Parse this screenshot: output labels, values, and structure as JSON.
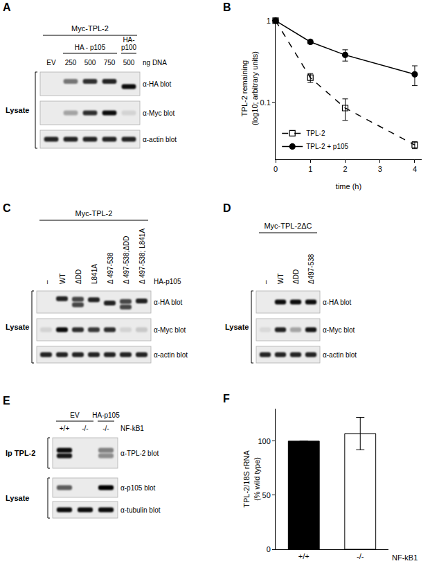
{
  "chart_data": [
    {
      "panel": "B",
      "type": "line",
      "x_label": "time (h)",
      "y_label": "TPL-2 remaining\n(log10; arbitrary units)",
      "log": "y",
      "xlim": [
        0,
        4.2
      ],
      "xticks": [
        0,
        1,
        2,
        3,
        4
      ],
      "ylim": [
        0.02,
        1.1
      ],
      "yticks": [
        0.1,
        1
      ],
      "grid": false,
      "legend": "lower left",
      "x": [
        0,
        1,
        2,
        4
      ],
      "series": [
        {
          "name": "TPL-2",
          "color": "#000000",
          "marker": "square-open",
          "line_style": "dash",
          "values": [
            1,
            0.2,
            0.085,
            0.03
          ],
          "errors": [
            0,
            0.025,
            0.025,
            0.003
          ]
        },
        {
          "name": "TPL-2 + p105",
          "color": "#000000",
          "marker": "circle",
          "line_style": "solid",
          "values": [
            1,
            0.55,
            0.38,
            0.22
          ],
          "errors": [
            0,
            0.03,
            0.06,
            0.06
          ]
        }
      ]
    },
    {
      "panel": "F",
      "type": "bar",
      "categories": [
        "+/+",
        "-/-"
      ],
      "values": [
        100,
        107
      ],
      "errors": [
        0,
        15
      ],
      "colors": [
        "#000000",
        "#ffffff"
      ],
      "y_label": "TPL-2/18S rRNA\n(% wild type)",
      "x_label": "NF-kB1",
      "ylim": [
        0,
        130
      ],
      "yticks": [
        0,
        50,
        100
      ],
      "grid": false
    }
  ],
  "blots": [
    {
      "panel": "A",
      "header": "Myc-TPL-2",
      "groups": [
        {
          "lines": [
            "HA - p105"
          ],
          "first": 1,
          "last": 3
        },
        {
          "lines": [
            "HA-",
            "p100"
          ],
          "first": 4,
          "last": 4
        }
      ],
      "lanes": [
        "EV",
        "250",
        "500",
        "750",
        "500"
      ],
      "lane_unit": "ng DNA",
      "sections": [
        {
          "label": "Lysate",
          "rows": [
            {
              "label": "α-HA blot",
              "bands": [
                [],
                [
                  0.5
                ],
                [
                  0.8
                ],
                [
                  0.85
                ],
                [
                  0.95
                ]
              ],
              "mobility": [
                0.4,
                0.4,
                0.4,
                0.4,
                0.62
              ]
            },
            {
              "label": "α-Myc blot",
              "bands": [
                [],
                [
                  0.3
                ],
                [
                  0.8
                ],
                [
                  0.95
                ],
                [
                  0.1
                ]
              ]
            },
            {
              "label": "α-actin blot",
              "bands": [
                [
                  0.85
                ],
                [
                  0.85
                ],
                [
                  0.85
                ],
                [
                  0.85
                ],
                [
                  0.85
                ]
              ]
            }
          ]
        }
      ]
    },
    {
      "panel": "C",
      "header": "Myc-TPL-2",
      "groups": [],
      "lanes": [
        "–",
        "WT",
        "ΔDD",
        "L841A",
        "Δ 497-538",
        "Δ 497-538;ΔDD",
        "Δ 497-538; L841A"
      ],
      "lane_unit": "HA-p105",
      "sections": [
        {
          "label": "Lysate",
          "rows": [
            {
              "label": "α-HA blot",
              "bands": [
                [],
                [
                  0.85
                ],
                [
                  0.7,
                  0.7
                ],
                [
                  0.85
                ],
                [
                  0.85
                ],
                [
                  0.7,
                  0.7
                ],
                [
                  0.85
                ]
              ],
              "mobility": [
                0.5,
                0.35,
                0.5,
                0.4,
                0.55,
                0.6,
                0.45
              ]
            },
            {
              "label": "α-Myc blot",
              "bands": [
                [
                  0.1
                ],
                [
                  0.95
                ],
                [
                  0.8
                ],
                [
                  0.75
                ],
                [
                  0.8
                ],
                [
                  0.1
                ],
                [
                  0.15
                ]
              ]
            },
            {
              "label": "α-actin blot",
              "bands": [
                [
                  0.85
                ],
                [
                  0.85
                ],
                [
                  0.85
                ],
                [
                  0.85
                ],
                [
                  0.85
                ],
                [
                  0.85
                ],
                [
                  0.85
                ]
              ]
            }
          ]
        }
      ]
    },
    {
      "panel": "D",
      "header": "Myc-TPL-2ΔC",
      "groups": [],
      "lanes": [
        "–",
        "WT",
        "ΔDD",
        "Δ497-538"
      ],
      "sections": [
        {
          "label": "Lysate",
          "rows": [
            {
              "label": "α-HA blot",
              "bands": [
                [],
                [
                  0.95
                ],
                [
                  0.95
                ],
                [
                  0.95
                ]
              ]
            },
            {
              "label": "α-Myc blot",
              "bands": [
                [
                  0.08
                ],
                [
                  0.85
                ],
                [
                  0.3
                ],
                [
                  0.9
                ]
              ]
            },
            {
              "label": "α-actin blot",
              "bands": [
                [
                  0.85
                ],
                [
                  0.85
                ],
                [
                  0.85
                ],
                [
                  0.85
                ]
              ]
            }
          ]
        }
      ]
    },
    {
      "panel": "E",
      "groups": [
        {
          "lines": [
            "EV"
          ],
          "first": 0,
          "last": 1
        },
        {
          "lines": [
            "HA-p105"
          ],
          "first": 2,
          "last": 2
        }
      ],
      "lanes": [
        "+/+",
        "-/-",
        "-/-"
      ],
      "lane_unit": "NF-kB1",
      "sections": [
        {
          "label": "Ip TPL-2",
          "rows": [
            {
              "label": "α-TPL-2 blot",
              "bands": [
                [
                  0.95,
                  0.9
                ],
                [],
                [
                  0.45,
                  0.4
                ]
              ]
            }
          ]
        },
        {
          "label": "Lysate",
          "rows": [
            {
              "label": "α-p105 blot",
              "bands": [
                [
                  0.6
                ],
                [],
                [
                  1
                ]
              ]
            },
            {
              "label": "α-tubulin blot",
              "bands": [
                [
                  0.95
                ],
                [
                  0.95
                ],
                [
                  0.95
                ]
              ]
            }
          ]
        }
      ]
    }
  ]
}
